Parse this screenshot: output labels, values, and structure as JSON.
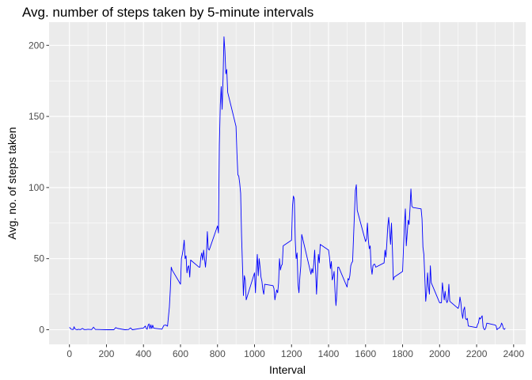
{
  "chart_data": {
    "type": "line",
    "title": "Avg. number of steps taken by 5-minute intervals",
    "xlabel": "Interval",
    "ylabel": "Avg. no. of steps taken",
    "xlim": [
      -110,
      2465
    ],
    "ylim": [
      -10.3,
      216.3
    ],
    "x_ticks": [
      0,
      200,
      400,
      600,
      800,
      1000,
      1200,
      1400,
      1600,
      1800,
      2000,
      2200,
      2400
    ],
    "y_ticks": [
      0,
      50,
      100,
      150,
      200
    ],
    "grid": true,
    "legend": "none",
    "line_color": "#0000ff",
    "panel_color": "#ebebeb",
    "series": [
      {
        "points": [
          [
            0,
            1.7
          ],
          [
            10,
            0.3
          ],
          [
            20,
            0.1
          ],
          [
            25,
            2.1
          ],
          [
            30,
            0.5
          ],
          [
            40,
            0.0
          ],
          [
            50,
            0.3
          ],
          [
            55,
            0.1
          ],
          [
            60,
            0.1
          ],
          [
            70,
            0.9
          ],
          [
            80,
            0.1
          ],
          [
            90,
            0.1
          ],
          [
            100,
            0.3
          ],
          [
            120,
            0.1
          ],
          [
            130,
            1.8
          ],
          [
            140,
            0.2
          ],
          [
            150,
            0.2
          ],
          [
            200,
            0.0
          ],
          [
            220,
            0.0
          ],
          [
            240,
            0.0
          ],
          [
            250,
            1.5
          ],
          [
            260,
            0.9
          ],
          [
            300,
            0.0
          ],
          [
            320,
            0.2
          ],
          [
            330,
            1.3
          ],
          [
            340,
            0.0
          ],
          [
            400,
            1.2
          ],
          [
            410,
            2.6
          ],
          [
            415,
            0.9
          ],
          [
            420,
            0.3
          ],
          [
            425,
            3.1
          ],
          [
            430,
            4.1
          ],
          [
            435,
            0.7
          ],
          [
            440,
            3.5
          ],
          [
            445,
            0.8
          ],
          [
            450,
            3.2
          ],
          [
            455,
            1.1
          ],
          [
            500,
            0.4
          ],
          [
            510,
            3.0
          ],
          [
            520,
            3.3
          ],
          [
            530,
            2.5
          ],
          [
            540,
            16.0
          ],
          [
            545,
            28.0
          ],
          [
            550,
            44.0
          ],
          [
            555,
            42.0
          ],
          [
            600,
            32.0
          ],
          [
            605,
            50.0
          ],
          [
            610,
            53.0
          ],
          [
            615,
            57.0
          ],
          [
            620,
            63.0
          ],
          [
            625,
            50.0
          ],
          [
            630,
            52.0
          ],
          [
            635,
            40.0
          ],
          [
            640,
            44.0
          ],
          [
            645,
            45.0
          ],
          [
            650,
            37.0
          ],
          [
            655,
            49.0
          ],
          [
            700,
            44.0
          ],
          [
            705,
            44.0
          ],
          [
            710,
            51.0
          ],
          [
            715,
            54.0
          ],
          [
            720,
            49.0
          ],
          [
            725,
            56.0
          ],
          [
            730,
            50.0
          ],
          [
            735,
            44.0
          ],
          [
            740,
            52.0
          ],
          [
            745,
            69.0
          ],
          [
            750,
            57.0
          ],
          [
            755,
            56.0
          ],
          [
            800,
            73.0
          ],
          [
            805,
            68.0
          ],
          [
            810,
            130.0
          ],
          [
            815,
            158.0
          ],
          [
            820,
            171.0
          ],
          [
            825,
            155.0
          ],
          [
            830,
            177.0
          ],
          [
            835,
            206.0
          ],
          [
            840,
            196.0
          ],
          [
            845,
            180.0
          ],
          [
            850,
            183.0
          ],
          [
            855,
            167.0
          ],
          [
            900,
            143.0
          ],
          [
            905,
            124.0
          ],
          [
            910,
            109.0
          ],
          [
            915,
            108.0
          ],
          [
            920,
            103.0
          ],
          [
            925,
            96.0
          ],
          [
            930,
            66.0
          ],
          [
            935,
            45.0
          ],
          [
            940,
            24.0
          ],
          [
            945,
            38.0
          ],
          [
            950,
            35.0
          ],
          [
            955,
            21.0
          ],
          [
            1000,
            40.0
          ],
          [
            1005,
            26.0
          ],
          [
            1010,
            42.0
          ],
          [
            1015,
            53.0
          ],
          [
            1020,
            38.0
          ],
          [
            1025,
            50.0
          ],
          [
            1030,
            44.0
          ],
          [
            1035,
            37.0
          ],
          [
            1040,
            34.0
          ],
          [
            1045,
            28.0
          ],
          [
            1050,
            25.0
          ],
          [
            1055,
            32.0
          ],
          [
            1100,
            31.0
          ],
          [
            1105,
            29.0
          ],
          [
            1110,
            21.0
          ],
          [
            1115,
            25.0
          ],
          [
            1120,
            28.0
          ],
          [
            1125,
            26.0
          ],
          [
            1130,
            33.0
          ],
          [
            1135,
            50.0
          ],
          [
            1140,
            42.0
          ],
          [
            1145,
            45.0
          ],
          [
            1150,
            46.0
          ],
          [
            1155,
            59.0
          ],
          [
            1200,
            63.0
          ],
          [
            1205,
            87.0
          ],
          [
            1210,
            94.0
          ],
          [
            1215,
            92.0
          ],
          [
            1220,
            63.0
          ],
          [
            1225,
            50.0
          ],
          [
            1230,
            54.0
          ],
          [
            1235,
            32.0
          ],
          [
            1240,
            26.0
          ],
          [
            1245,
            37.0
          ],
          [
            1250,
            45.0
          ],
          [
            1255,
            67.0
          ],
          [
            1300,
            42.0
          ],
          [
            1305,
            39.0
          ],
          [
            1310,
            43.0
          ],
          [
            1315,
            40.0
          ],
          [
            1320,
            46.0
          ],
          [
            1325,
            56.0
          ],
          [
            1330,
            42.0
          ],
          [
            1335,
            25.0
          ],
          [
            1340,
            39.0
          ],
          [
            1345,
            53.0
          ],
          [
            1350,
            47.0
          ],
          [
            1355,
            60.0
          ],
          [
            1400,
            56.0
          ],
          [
            1405,
            51.0
          ],
          [
            1410,
            43.0
          ],
          [
            1415,
            48.0
          ],
          [
            1420,
            35.0
          ],
          [
            1425,
            37.0
          ],
          [
            1430,
            41.0
          ],
          [
            1435,
            27.0
          ],
          [
            1440,
            17.0
          ],
          [
            1445,
            26.0
          ],
          [
            1450,
            44.0
          ],
          [
            1455,
            44.0
          ],
          [
            1500,
            30.0
          ],
          [
            1505,
            36.0
          ],
          [
            1510,
            35.0
          ],
          [
            1515,
            38.0
          ],
          [
            1520,
            45.0
          ],
          [
            1525,
            47.0
          ],
          [
            1530,
            48.0
          ],
          [
            1535,
            65.0
          ],
          [
            1540,
            82.0
          ],
          [
            1545,
            98.0
          ],
          [
            1550,
            102.0
          ],
          [
            1555,
            84.0
          ],
          [
            1600,
            62.0
          ],
          [
            1605,
            64.0
          ],
          [
            1610,
            75.0
          ],
          [
            1615,
            63.0
          ],
          [
            1620,
            57.0
          ],
          [
            1625,
            59.0
          ],
          [
            1630,
            44.0
          ],
          [
            1635,
            39.0
          ],
          [
            1640,
            45.0
          ],
          [
            1645,
            46.0
          ],
          [
            1650,
            46.0
          ],
          [
            1655,
            44.0
          ],
          [
            1700,
            47.0
          ],
          [
            1705,
            56.0
          ],
          [
            1710,
            51.0
          ],
          [
            1715,
            61.0
          ],
          [
            1720,
            73.0
          ],
          [
            1725,
            79.0
          ],
          [
            1730,
            69.0
          ],
          [
            1735,
            60.0
          ],
          [
            1740,
            75.0
          ],
          [
            1745,
            57.0
          ],
          [
            1750,
            35.0
          ],
          [
            1755,
            37.0
          ],
          [
            1800,
            41.0
          ],
          [
            1805,
            58.0
          ],
          [
            1810,
            74.0
          ],
          [
            1815,
            85.0
          ],
          [
            1820,
            59.0
          ],
          [
            1825,
            68.0
          ],
          [
            1830,
            77.0
          ],
          [
            1835,
            74.0
          ],
          [
            1840,
            85.0
          ],
          [
            1845,
            99.0
          ],
          [
            1850,
            87.0
          ],
          [
            1855,
            86.0
          ],
          [
            1900,
            85.0
          ],
          [
            1905,
            78.0
          ],
          [
            1910,
            58.0
          ],
          [
            1915,
            53.0
          ],
          [
            1920,
            37.0
          ],
          [
            1925,
            20.0
          ],
          [
            1930,
            27.0
          ],
          [
            1935,
            40.0
          ],
          [
            1940,
            30.0
          ],
          [
            1945,
            25.0
          ],
          [
            1950,
            45.0
          ],
          [
            1955,
            33.0
          ],
          [
            2000,
            19.0
          ],
          [
            2005,
            19.0
          ],
          [
            2010,
            19.0
          ],
          [
            2015,
            33.0
          ],
          [
            2020,
            27.0
          ],
          [
            2025,
            21.0
          ],
          [
            2030,
            27.0
          ],
          [
            2035,
            21.0
          ],
          [
            2040,
            19.0
          ],
          [
            2045,
            21.0
          ],
          [
            2050,
            32.0
          ],
          [
            2055,
            20.0
          ],
          [
            2100,
            15.0
          ],
          [
            2105,
            17.0
          ],
          [
            2110,
            23.0
          ],
          [
            2115,
            19.0
          ],
          [
            2120,
            12.0
          ],
          [
            2125,
            8.0
          ],
          [
            2130,
            14.0
          ],
          [
            2135,
            16.0
          ],
          [
            2140,
            8.0
          ],
          [
            2145,
            7.0
          ],
          [
            2150,
            8.0
          ],
          [
            2155,
            2.6
          ],
          [
            2200,
            1.5
          ],
          [
            2205,
            3.7
          ],
          [
            2210,
            4.8
          ],
          [
            2215,
            8.5
          ],
          [
            2220,
            7.5
          ],
          [
            2225,
            8.7
          ],
          [
            2230,
            9.8
          ],
          [
            2235,
            2.2
          ],
          [
            2240,
            0.3
          ],
          [
            2245,
            0.1
          ],
          [
            2250,
            1.6
          ],
          [
            2255,
            4.6
          ],
          [
            2300,
            3.3
          ],
          [
            2305,
            2.8
          ],
          [
            2310,
            0.0
          ],
          [
            2315,
            0.8
          ],
          [
            2320,
            1.0
          ],
          [
            2325,
            1.6
          ],
          [
            2330,
            2.6
          ],
          [
            2335,
            4.7
          ],
          [
            2340,
            3.3
          ],
          [
            2345,
            0.6
          ],
          [
            2350,
            0.2
          ],
          [
            2355,
            1.1
          ]
        ]
      }
    ]
  }
}
